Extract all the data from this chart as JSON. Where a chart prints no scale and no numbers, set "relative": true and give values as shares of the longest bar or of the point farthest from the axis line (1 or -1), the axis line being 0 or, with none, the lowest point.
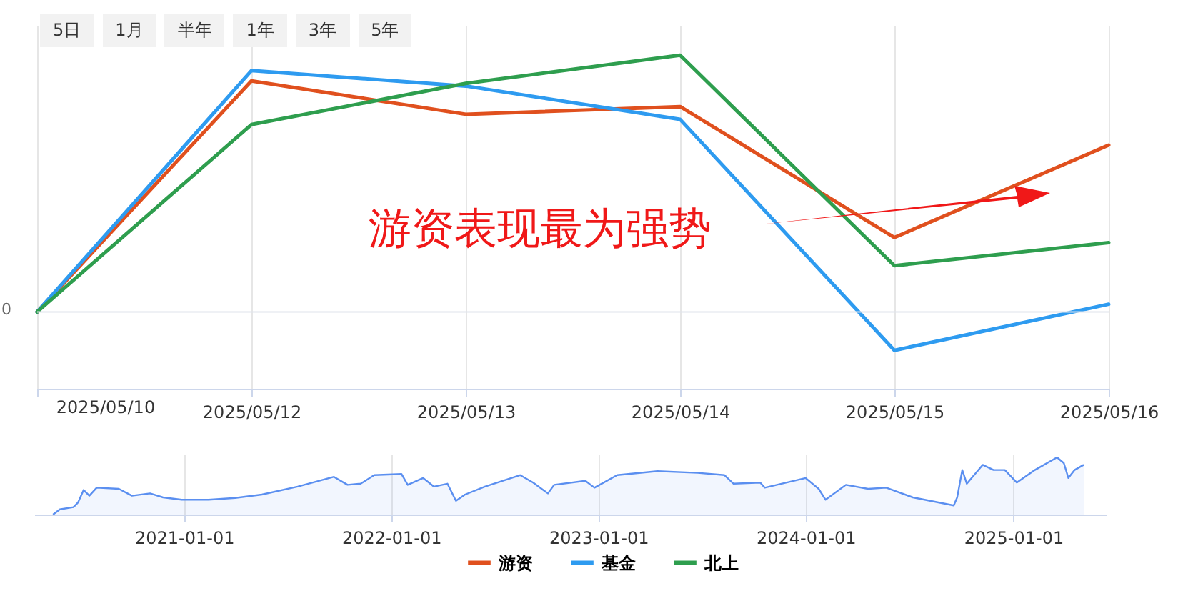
{
  "chart_data": [
    {
      "type": "other",
      "annotations": [
        "5日",
        "1月",
        "半年",
        "1年",
        "3年",
        "5年"
      ]
    },
    {
      "type": "line",
      "relative": true,
      "categories": [
        null,
        "2025/05/12",
        "2025/05/13",
        "2025/05/14",
        "2025/05/15",
        "2025/05/16"
      ],
      "series": [
        {
          "name": "游资",
          "color": "#e0501e",
          "values": [
            0,
            0.9,
            0.77,
            0.8,
            0.29,
            0.65
          ]
        },
        {
          "name": "基金",
          "color": "#2e9bf0",
          "values": [
            0,
            0.94,
            0.88,
            0.75,
            -0.15,
            0.03
          ]
        },
        {
          "name": "北上",
          "color": "#2e9e4e",
          "values": [
            0,
            0.73,
            0.89,
            1,
            0.18,
            0.27
          ]
        }
      ],
      "grid": "x",
      "legend": "bottom",
      "line_style": "solid",
      "marker": "none",
      "annotations": [
        "0",
        "2025/05/10",
        "游资表现最为强势"
      ]
    },
    {
      "type": "area",
      "relative": true,
      "x": [
        "2020-05-15",
        "2020-05-27",
        "2020-06-20",
        "2020-06-28",
        "2020-07-08",
        "2020-07-18",
        "2020-07-31",
        "2020-09-08",
        "2020-10-01",
        "2020-11-02",
        "2020-11-25",
        "2020-12-28",
        "2021-02-13",
        "2021-04-01",
        "2021-05-18",
        "2021-07-20",
        "2021-09-22",
        "2021-10-16",
        "2021-11-08",
        "2021-12-02",
        "2022-01-19",
        "2022-01-30",
        "2022-02-26",
        "2022-03-17",
        "2022-04-10",
        "2022-04-25",
        "2022-05-11",
        "2022-06-15",
        "2022-07-16",
        "2022-08-16",
        "2022-09-08",
        "2022-10-04",
        "2022-10-15",
        "2022-12-09",
        "2022-12-25",
        "2023-02-03",
        "2023-04-15",
        "2023-06-25",
        "2023-08-11",
        "2023-08-27",
        "2023-10-13",
        "2023-10-21",
        "2024-01-01",
        "2024-01-24",
        "2024-02-05",
        "2024-03-12",
        "2024-04-20",
        "2024-05-22",
        "2024-07-08",
        "2024-09-18",
        "2024-09-24",
        "2024-10-03",
        "2024-10-11",
        "2024-11-08",
        "2024-11-27",
        "2024-12-17",
        "2025-01-07",
        "2025-02-08",
        "2025-03-19",
        "2025-03-31",
        "2025-04-08",
        "2025-04-19",
        "2025-05-05"
      ],
      "series": [
        {
          "color": "#5b8ff0",
          "values": [
            0,
            0.09,
            0.13,
            0.21,
            0.43,
            0.33,
            0.47,
            0.45,
            0.33,
            0.37,
            0.3,
            0.26,
            0.26,
            0.29,
            0.35,
            0.49,
            0.66,
            0.52,
            0.54,
            0.69,
            0.71,
            0.52,
            0.64,
            0.49,
            0.54,
            0.24,
            0.35,
            0.49,
            0.59,
            0.69,
            0.56,
            0.37,
            0.52,
            0.59,
            0.47,
            0.69,
            0.76,
            0.73,
            0.69,
            0.54,
            0.56,
            0.47,
            0.64,
            0.45,
            0.26,
            0.52,
            0.45,
            0.47,
            0.3,
            0.16,
            0.3,
            0.78,
            0.54,
            0.87,
            0.78,
            0.78,
            0.56,
            0.78,
            1,
            0.9,
            0.64,
            0.78,
            0.87
          ]
        }
      ],
      "xlim": [
        "2020-04-12",
        "2025-06-13"
      ],
      "xticks": [
        "2021-01-01",
        "2022-01-01",
        "2023-01-01",
        "2024-01-01",
        "2025-01-01"
      ],
      "grid": "x"
    }
  ]
}
